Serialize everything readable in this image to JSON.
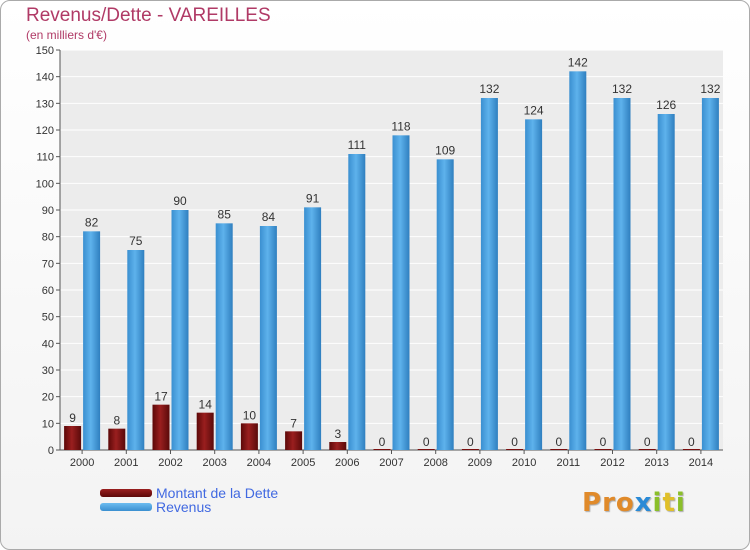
{
  "header": {
    "title": "Revenus/Dette - VAREILLES",
    "subtitle": "(en milliers d'€)"
  },
  "legend": {
    "items": [
      {
        "label": "Montant de la Dette",
        "color": "#7a0f0f"
      },
      {
        "label": "Revenus",
        "color": "#4ca3e0"
      }
    ]
  },
  "branding": {
    "logo_text": "Proxiti",
    "letter_colors": [
      "#e08a2a",
      "#e08a2a",
      "#e08a2a",
      "#2a8ad6",
      "#8bbf2a",
      "#e0c02a",
      "#8bbf2a"
    ]
  },
  "chart_data": {
    "type": "bar",
    "title": "Revenus/Dette - VAREILLES",
    "subtitle": "(en milliers d'€)",
    "categories": [
      "2000",
      "2001",
      "2002",
      "2003",
      "2004",
      "2005",
      "2006",
      "2007",
      "2008",
      "2009",
      "2010",
      "2011",
      "2012",
      "2013",
      "2014"
    ],
    "series": [
      {
        "name": "Montant de la Dette",
        "color": "#7a0f0f",
        "values": [
          9,
          8,
          17,
          14,
          10,
          7,
          3,
          0,
          0,
          0,
          0,
          0,
          0,
          0,
          0
        ]
      },
      {
        "name": "Revenus",
        "color": "#4ca3e0",
        "values": [
          82,
          75,
          90,
          85,
          84,
          91,
          111,
          118,
          109,
          132,
          124,
          142,
          132,
          126,
          132
        ]
      }
    ],
    "yticks": [
      0,
      10,
      20,
      30,
      40,
      50,
      60,
      70,
      80,
      90,
      100,
      110,
      120,
      130,
      140,
      150
    ],
    "ylim": [
      0,
      150
    ],
    "grid": true,
    "legend": "bottom-left"
  }
}
